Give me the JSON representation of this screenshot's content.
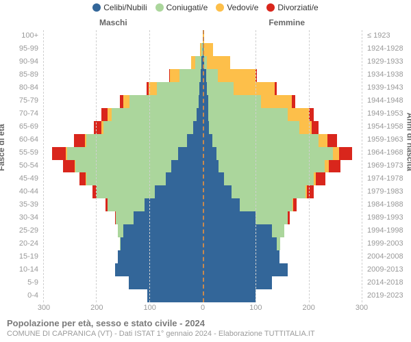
{
  "legend": [
    {
      "label": "Celibi/Nubili",
      "color": "#336699"
    },
    {
      "label": "Coniugati/e",
      "color": "#abd69c"
    },
    {
      "label": "Vedovi/e",
      "color": "#fdbf4a"
    },
    {
      "label": "Divorziati/e",
      "color": "#d9261c"
    }
  ],
  "header_left": "Maschi",
  "header_right": "Femmine",
  "axis_left_label": "Fasce di età",
  "axis_right_label": "Anni di nascita",
  "title": "Popolazione per età, sesso e stato civile - 2024",
  "subtitle": "COMUNE DI CAPRANICA (VT) - Dati ISTAT 1° gennaio 2024 - Elaborazione TUTTITALIA.IT",
  "x_max": 300,
  "x_ticks_left": [
    300,
    200,
    100,
    0
  ],
  "x_ticks_right": [
    100,
    200,
    300
  ],
  "colors": {
    "single": "#336699",
    "married": "#abd69c",
    "widowed": "#fdbf4a",
    "divorced": "#d9261c",
    "gridline": "#d4d4d4",
    "center_axis": "#c9894d",
    "background": "#ffffff"
  },
  "rows": [
    {
      "age": "100+",
      "birth": "≤ 1923",
      "m": {
        "single": 0,
        "married": 0,
        "widowed": 0,
        "divorced": 0
      },
      "f": {
        "single": 0,
        "married": 0,
        "widowed": 3,
        "divorced": 0
      }
    },
    {
      "age": "95-99",
      "birth": "1924-1928",
      "m": {
        "single": 0,
        "married": 2,
        "widowed": 3,
        "divorced": 0
      },
      "f": {
        "single": 1,
        "married": 1,
        "widowed": 18,
        "divorced": 0
      }
    },
    {
      "age": "90-94",
      "birth": "1929-1933",
      "m": {
        "single": 2,
        "married": 12,
        "widowed": 8,
        "divorced": 0
      },
      "f": {
        "single": 3,
        "married": 5,
        "widowed": 44,
        "divorced": 0
      }
    },
    {
      "age": "85-89",
      "birth": "1934-1938",
      "m": {
        "single": 4,
        "married": 40,
        "widowed": 18,
        "divorced": 2
      },
      "f": {
        "single": 6,
        "married": 22,
        "widowed": 72,
        "divorced": 2
      }
    },
    {
      "age": "80-84",
      "birth": "1939-1943",
      "m": {
        "single": 6,
        "married": 80,
        "widowed": 16,
        "divorced": 4
      },
      "f": {
        "single": 8,
        "married": 50,
        "widowed": 78,
        "divorced": 4
      }
    },
    {
      "age": "75-79",
      "birth": "1944-1948",
      "m": {
        "single": 8,
        "married": 130,
        "widowed": 12,
        "divorced": 6
      },
      "f": {
        "single": 10,
        "married": 100,
        "widowed": 58,
        "divorced": 6
      }
    },
    {
      "age": "70-74",
      "birth": "1949-1953",
      "m": {
        "single": 12,
        "married": 160,
        "widowed": 8,
        "divorced": 12
      },
      "f": {
        "single": 10,
        "married": 150,
        "widowed": 40,
        "divorced": 10
      }
    },
    {
      "age": "65-69",
      "birth": "1954-1958",
      "m": {
        "single": 18,
        "married": 170,
        "widowed": 4,
        "divorced": 14
      },
      "f": {
        "single": 12,
        "married": 170,
        "widowed": 24,
        "divorced": 12
      }
    },
    {
      "age": "60-64",
      "birth": "1959-1963",
      "m": {
        "single": 30,
        "married": 190,
        "widowed": 3,
        "divorced": 20
      },
      "f": {
        "single": 18,
        "married": 200,
        "widowed": 18,
        "divorced": 18
      }
    },
    {
      "age": "55-59",
      "birth": "1964-1968",
      "m": {
        "single": 46,
        "married": 210,
        "widowed": 2,
        "divorced": 26
      },
      "f": {
        "single": 26,
        "married": 220,
        "widowed": 12,
        "divorced": 24
      }
    },
    {
      "age": "50-54",
      "birth": "1969-1973",
      "m": {
        "single": 60,
        "married": 180,
        "widowed": 2,
        "divorced": 22
      },
      "f": {
        "single": 30,
        "married": 200,
        "widowed": 8,
        "divorced": 22
      }
    },
    {
      "age": "45-49",
      "birth": "1974-1978",
      "m": {
        "single": 70,
        "married": 150,
        "widowed": 1,
        "divorced": 12
      },
      "f": {
        "single": 40,
        "married": 170,
        "widowed": 4,
        "divorced": 18
      }
    },
    {
      "age": "40-44",
      "birth": "1979-1983",
      "m": {
        "single": 90,
        "married": 110,
        "widowed": 0,
        "divorced": 8
      },
      "f": {
        "single": 54,
        "married": 140,
        "widowed": 2,
        "divorced": 14
      }
    },
    {
      "age": "35-39",
      "birth": "1984-1988",
      "m": {
        "single": 110,
        "married": 70,
        "widowed": 0,
        "divorced": 4
      },
      "f": {
        "single": 70,
        "married": 100,
        "widowed": 1,
        "divorced": 6
      }
    },
    {
      "age": "30-34",
      "birth": "1989-1993",
      "m": {
        "single": 130,
        "married": 34,
        "widowed": 0,
        "divorced": 2
      },
      "f": {
        "single": 100,
        "married": 60,
        "widowed": 0,
        "divorced": 4
      }
    },
    {
      "age": "25-29",
      "birth": "1994-1998",
      "m": {
        "single": 150,
        "married": 10,
        "widowed": 0,
        "divorced": 0
      },
      "f": {
        "single": 130,
        "married": 24,
        "widowed": 0,
        "divorced": 0
      }
    },
    {
      "age": "20-24",
      "birth": "1999-2003",
      "m": {
        "single": 155,
        "married": 2,
        "widowed": 0,
        "divorced": 0
      },
      "f": {
        "single": 140,
        "married": 6,
        "widowed": 0,
        "divorced": 0
      }
    },
    {
      "age": "15-19",
      "birth": "2004-2008",
      "m": {
        "single": 160,
        "married": 0,
        "widowed": 0,
        "divorced": 0
      },
      "f": {
        "single": 145,
        "married": 0,
        "widowed": 0,
        "divorced": 0
      }
    },
    {
      "age": "10-14",
      "birth": "2009-2013",
      "m": {
        "single": 165,
        "married": 0,
        "widowed": 0,
        "divorced": 0
      },
      "f": {
        "single": 160,
        "married": 0,
        "widowed": 0,
        "divorced": 0
      }
    },
    {
      "age": "5-9",
      "birth": "2014-2018",
      "m": {
        "single": 140,
        "married": 0,
        "widowed": 0,
        "divorced": 0
      },
      "f": {
        "single": 130,
        "married": 0,
        "widowed": 0,
        "divorced": 0
      }
    },
    {
      "age": "0-4",
      "birth": "2019-2023",
      "m": {
        "single": 105,
        "married": 0,
        "widowed": 0,
        "divorced": 0
      },
      "f": {
        "single": 100,
        "married": 0,
        "widowed": 0,
        "divorced": 0
      }
    }
  ]
}
